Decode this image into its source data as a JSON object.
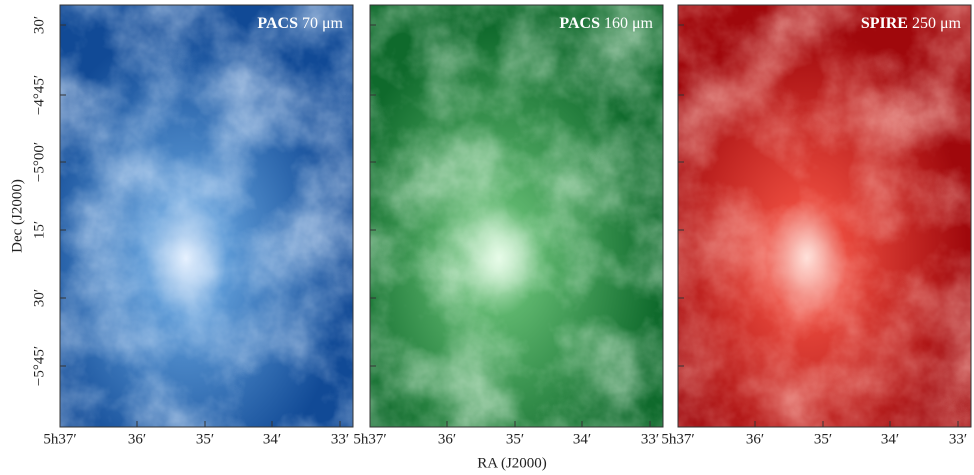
{
  "panels": [
    {
      "instrument": "PACS",
      "band": "70 μm"
    },
    {
      "instrument": "PACS",
      "band": "160 μm"
    },
    {
      "instrument": "SPIRE",
      "band": "250 μm"
    }
  ],
  "y_axis": {
    "label": "Dec (J2000)",
    "ticks": [
      "30′",
      "−4°45′",
      "−5°00′",
      "15′",
      "30′",
      "−5°45′"
    ]
  },
  "x_axis": {
    "label": "RA (J2000)",
    "ticks": [
      "5h37′",
      "36′",
      "35′",
      "34′",
      "33′"
    ]
  }
}
